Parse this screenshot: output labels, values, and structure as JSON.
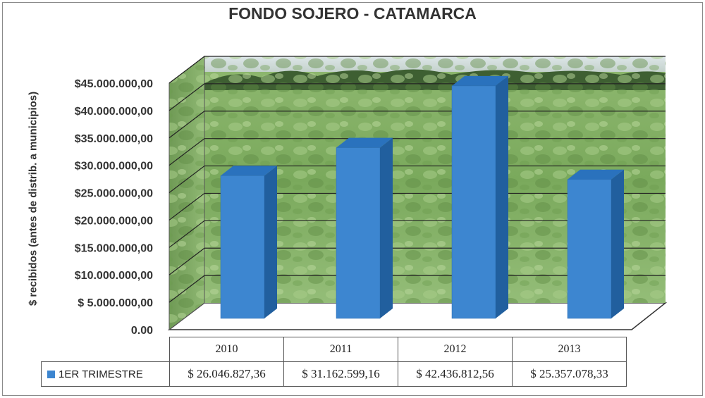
{
  "chart_data": {
    "type": "bar",
    "title": "FONDO SOJERO - CATAMARCA",
    "ylabel": "$ recibidos (antes de distrib. a municipios)",
    "xlabel": "",
    "categories": [
      "2010",
      "2011",
      "2012",
      "2013"
    ],
    "series": [
      {
        "name": "1ER TRIMESTRE",
        "values": [
          26046827.36,
          31162599.16,
          42436812.56,
          25357078.33
        ],
        "value_labels": [
          "$ 26.046.827,36",
          "$ 31.162.599,16",
          "$ 42.436.812,56",
          "$ 25.357.078,33"
        ],
        "color": "#3d86d0"
      }
    ],
    "ylim": [
      0,
      45000000
    ],
    "yticks": [
      0,
      5000000,
      10000000,
      15000000,
      20000000,
      25000000,
      30000000,
      35000000,
      40000000,
      45000000
    ],
    "ytick_labels": [
      "0.00",
      "$ 5.000.000,00",
      "$10.000.000,00",
      "$15.000.000,00",
      "$20.000.000,00",
      "$25.000.000,00",
      "$30.000.000,00",
      "$35.000.000,00",
      "$40.000.000,00",
      "$45.000.000,00"
    ],
    "grid": true,
    "legend_placement": "data-table",
    "background": "soybean field photo",
    "style": "3d-column"
  }
}
